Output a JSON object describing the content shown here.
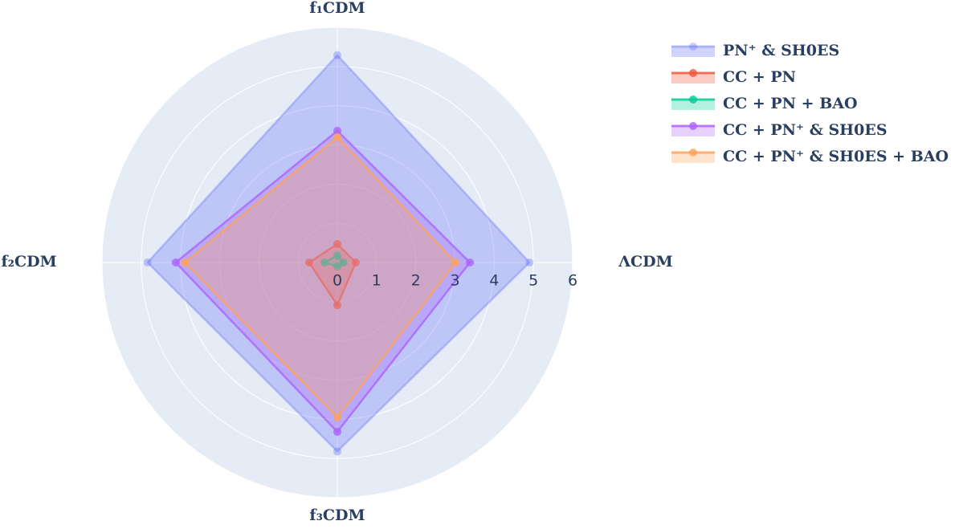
{
  "chart_data": {
    "type": "radar",
    "categories": [
      "ΛCDM",
      "f₁CDM",
      "f₂CDM",
      "f₃CDM"
    ],
    "rlim": [
      0,
      6
    ],
    "rticks": [
      0,
      1,
      2,
      3,
      4,
      5,
      6
    ],
    "series": [
      {
        "name": "PN⁺ & SH0ES",
        "color": "#636efa",
        "values": [
          4.9,
          5.29,
          4.84,
          4.82
        ]
      },
      {
        "name": "CC + PN",
        "color": "#ef553b",
        "values": [
          0.47,
          0.47,
          0.72,
          1.09
        ]
      },
      {
        "name": "CC + PN + BAO",
        "color": "#00cc96",
        "values": [
          0.16,
          0.18,
          0.33,
          0.1
        ]
      },
      {
        "name": "CC + PN⁺ & SH0ES",
        "color": "#ab63fa",
        "values": [
          3.38,
          3.36,
          4.12,
          4.32
        ]
      },
      {
        "name": "CC + PN⁺ & SH0ES + BAO",
        "color": "#ffa15a",
        "values": [
          3.01,
          3.2,
          3.89,
          3.95
        ]
      }
    ]
  }
}
